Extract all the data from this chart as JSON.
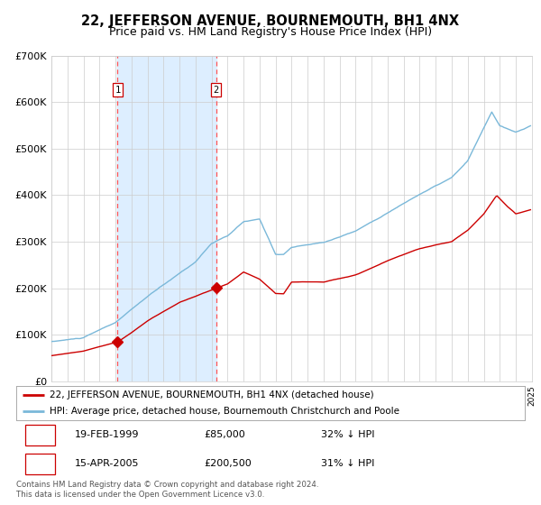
{
  "title": "22, JEFFERSON AVENUE, BOURNEMOUTH, BH1 4NX",
  "subtitle": "Price paid vs. HM Land Registry's House Price Index (HPI)",
  "ylim": [
    0,
    700000
  ],
  "yticks": [
    0,
    100000,
    200000,
    300000,
    400000,
    500000,
    600000,
    700000
  ],
  "ytick_labels": [
    "£0",
    "£100K",
    "£200K",
    "£300K",
    "£400K",
    "£500K",
    "£600K",
    "£700K"
  ],
  "x_start_year": 1995,
  "x_end_year": 2025,
  "hpi_color": "#7ab8d9",
  "price_color": "#cc0000",
  "sale1_year": 1999.13,
  "sale1_price": 85000,
  "sale2_year": 2005.29,
  "sale2_price": 200500,
  "vline_color": "#ff5555",
  "shade_color": "#ddeeff",
  "legend_line1": "22, JEFFERSON AVENUE, BOURNEMOUTH, BH1 4NX (detached house)",
  "legend_line2": "HPI: Average price, detached house, Bournemouth Christchurch and Poole",
  "table_row1": [
    "1",
    "19-FEB-1999",
    "£85,000",
    "32% ↓ HPI"
  ],
  "table_row2": [
    "2",
    "15-APR-2005",
    "£200,500",
    "31% ↓ HPI"
  ],
  "footer": "Contains HM Land Registry data © Crown copyright and database right 2024.\nThis data is licensed under the Open Government Licence v3.0.",
  "background_color": "#ffffff",
  "grid_color": "#cccccc",
  "hpi_key_years": [
    1995,
    1997,
    1999,
    2001,
    2004,
    2005,
    2006,
    2007,
    2008,
    2009,
    2009.5,
    2010,
    2012,
    2014,
    2016,
    2018,
    2020,
    2021,
    2022.5,
    2023,
    2024,
    2025
  ],
  "hpi_key_vals": [
    85000,
    93000,
    125000,
    180000,
    255000,
    295000,
    310000,
    340000,
    345000,
    270000,
    270000,
    285000,
    295000,
    320000,
    360000,
    400000,
    435000,
    470000,
    575000,
    545000,
    530000,
    545000
  ],
  "price_key_years": [
    1995,
    1997,
    1999.13,
    2000,
    2001,
    2003,
    2005.29,
    2006,
    2007,
    2008,
    2009,
    2009.5,
    2010,
    2012,
    2014,
    2016,
    2018,
    2020,
    2021,
    2022,
    2022.8,
    2023.5,
    2024,
    2025
  ],
  "price_key_vals": [
    55000,
    65000,
    85000,
    105000,
    130000,
    170000,
    200500,
    210000,
    235000,
    220000,
    190000,
    190000,
    215000,
    215000,
    230000,
    260000,
    285000,
    300000,
    325000,
    360000,
    400000,
    375000,
    360000,
    370000
  ]
}
